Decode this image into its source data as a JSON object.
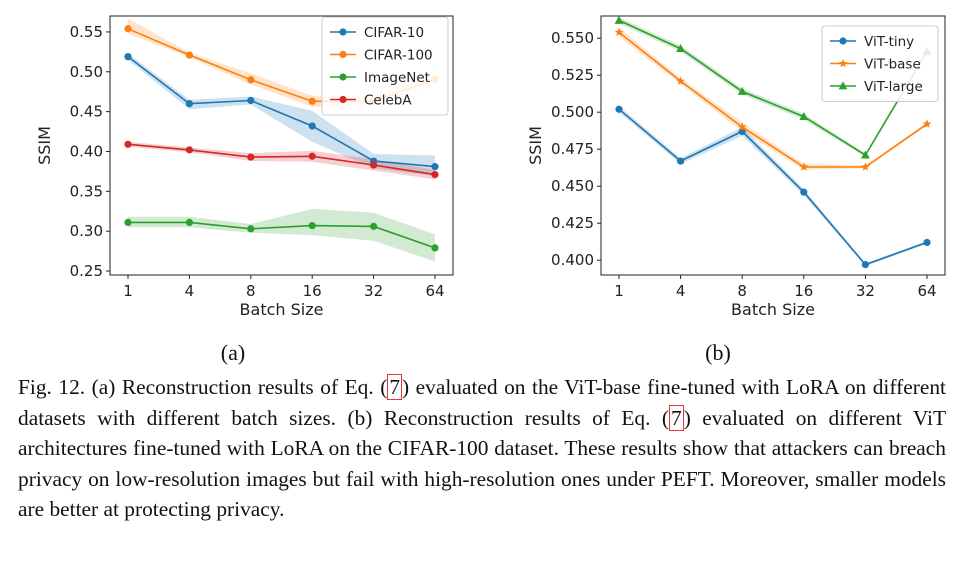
{
  "charts": [
    {
      "subfig_label": "(a)",
      "xlabel": "Batch Size",
      "ylabel": "SSIM",
      "x_ticks": [
        "1",
        "4",
        "8",
        "16",
        "32",
        "64"
      ],
      "y_ticks": [
        "0.25",
        "0.30",
        "0.35",
        "0.40",
        "0.45",
        "0.50",
        "0.55"
      ],
      "legend": [
        "CIFAR-10",
        "CIFAR-100",
        "ImageNet",
        "CelebA"
      ]
    },
    {
      "subfig_label": "(b)",
      "xlabel": "Batch Size",
      "ylabel": "SSIM",
      "x_ticks": [
        "1",
        "4",
        "8",
        "16",
        "32",
        "64"
      ],
      "y_ticks": [
        "0.400",
        "0.425",
        "0.450",
        "0.475",
        "0.500",
        "0.525",
        "0.550"
      ],
      "legend": [
        "ViT-tiny",
        "ViT-base",
        "ViT-large"
      ]
    }
  ],
  "chart_data": [
    {
      "type": "line",
      "subfigure": "(a)",
      "xlabel": "Batch Size",
      "ylabel": "SSIM",
      "x": [
        "1",
        "4",
        "8",
        "16",
        "32",
        "64"
      ],
      "ylim": [
        0.245,
        0.57
      ],
      "grid": false,
      "legend_position": "top-right",
      "series": [
        {
          "name": "CIFAR-10",
          "color": "#1f77b4",
          "marker": "circle",
          "values": [
            0.519,
            0.46,
            0.464,
            0.432,
            0.388,
            0.381
          ],
          "lower": [
            0.515,
            0.453,
            0.459,
            0.412,
            0.379,
            0.369
          ],
          "upper": [
            0.523,
            0.465,
            0.469,
            0.451,
            0.397,
            0.395
          ]
        },
        {
          "name": "CIFAR-100",
          "color": "#ff7f0e",
          "marker": "circle",
          "values": [
            0.554,
            0.521,
            0.49,
            0.463,
            0.463,
            0.491
          ],
          "lower": [
            0.548,
            0.518,
            0.484,
            0.456,
            0.458,
            0.485
          ],
          "upper": [
            0.567,
            0.524,
            0.498,
            0.47,
            0.468,
            0.497
          ]
        },
        {
          "name": "ImageNet",
          "color": "#2ca02c",
          "marker": "circle",
          "values": [
            0.311,
            0.311,
            0.303,
            0.307,
            0.306,
            0.279
          ],
          "lower": [
            0.305,
            0.305,
            0.298,
            0.295,
            0.288,
            0.262
          ],
          "upper": [
            0.318,
            0.318,
            0.309,
            0.328,
            0.323,
            0.296
          ]
        },
        {
          "name": "CelebA",
          "color": "#d62728",
          "marker": "circle",
          "values": [
            0.409,
            0.402,
            0.393,
            0.394,
            0.383,
            0.371
          ],
          "lower": [
            0.406,
            0.399,
            0.388,
            0.387,
            0.376,
            0.365
          ],
          "upper": [
            0.412,
            0.405,
            0.398,
            0.401,
            0.39,
            0.377
          ]
        }
      ]
    },
    {
      "type": "line",
      "subfigure": "(b)",
      "xlabel": "Batch Size",
      "ylabel": "SSIM",
      "x": [
        "1",
        "4",
        "8",
        "16",
        "32",
        "64"
      ],
      "ylim": [
        0.39,
        0.565
      ],
      "grid": false,
      "legend_position": "top-right",
      "series": [
        {
          "name": "ViT-tiny",
          "color": "#1f77b4",
          "marker": "circle",
          "values": [
            0.502,
            0.467,
            0.487,
            0.446,
            0.397,
            0.412
          ],
          "lower": [
            0.5,
            0.465,
            0.484,
            0.444,
            0.396,
            0.411
          ],
          "upper": [
            0.504,
            0.469,
            0.49,
            0.448,
            0.398,
            0.413
          ]
        },
        {
          "name": "ViT-base",
          "color": "#ff7f0e",
          "marker": "star",
          "values": [
            0.554,
            0.521,
            0.49,
            0.463,
            0.463,
            0.492
          ],
          "lower": [
            0.551,
            0.519,
            0.487,
            0.461,
            0.462,
            0.491
          ],
          "upper": [
            0.557,
            0.523,
            0.493,
            0.465,
            0.464,
            0.493
          ]
        },
        {
          "name": "ViT-large",
          "color": "#2ca02c",
          "marker": "triangle",
          "values": [
            0.562,
            0.543,
            0.514,
            0.497,
            0.471,
            0.541
          ],
          "lower": [
            0.56,
            0.541,
            0.512,
            0.495,
            0.47,
            0.54
          ],
          "upper": [
            0.564,
            0.545,
            0.516,
            0.499,
            0.472,
            0.542
          ]
        }
      ]
    }
  ],
  "caption": {
    "p1": "Fig. 12.  (a) Reconstruction results of Eq. (",
    "ref1": "7",
    "p2": ") evaluated on the ViT-base fine-tuned with LoRA on different datasets with different batch sizes. (b) Reconstruction results of Eq. (",
    "ref2": "7",
    "p3": ") evaluated on different ViT architectures fine-tuned with LoRA on the CIFAR-100 dataset. These results show that attackers can breach privacy on low-resolution images but fail with high-resolution ones under PEFT. Moreover, smaller models are better at protecting privacy."
  }
}
